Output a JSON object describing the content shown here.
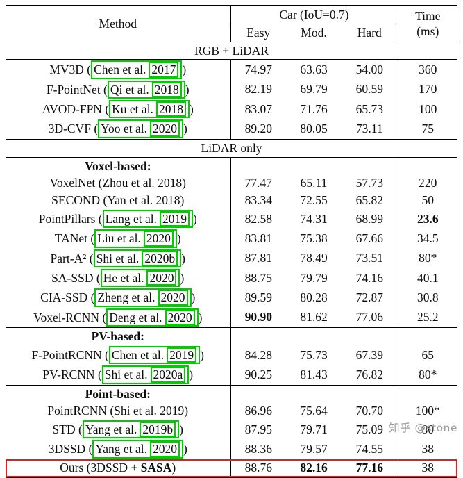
{
  "header": {
    "method": "Method",
    "car_group": "Car (IoU=0.7)",
    "sub_easy": "Easy",
    "sub_mod": "Mod.",
    "sub_hard": "Hard",
    "time_line1": "Time",
    "time_line2": "(ms)"
  },
  "rows": [
    {
      "label": "RGB + LiDAR"
    },
    {
      "pre": "MV3D (",
      "cite": "Chen et al.",
      "year": "2017",
      "post": ")",
      "easy": "74.97",
      "mod": "63.63",
      "hard": "54.00",
      "time": "360"
    },
    {
      "pre": "F-PointNet (",
      "cite": "Qi et al.",
      "year": "2018",
      "post": ")",
      "easy": "82.19",
      "mod": "69.79",
      "hard": "60.59",
      "time": "170"
    },
    {
      "pre": "AVOD-FPN (",
      "cite": "Ku et al.",
      "year": "2018",
      "post": ")",
      "easy": "83.07",
      "mod": "71.76",
      "hard": "65.73",
      "time": "100"
    },
    {
      "pre": "3D-CVF (",
      "cite": "Yoo et al.",
      "year": "2020",
      "post": ")",
      "easy": "89.20",
      "mod": "80.05",
      "hard": "73.11",
      "time": "75"
    },
    {
      "label": "LiDAR only"
    },
    {
      "label": "Voxel-based:"
    },
    {
      "pre": "VoxelNet (Zhou et al. 2018)",
      "easy": "77.47",
      "mod": "65.11",
      "hard": "57.73",
      "time": "220"
    },
    {
      "pre": "SECOND (Yan et al. 2018)",
      "easy": "83.34",
      "mod": "72.55",
      "hard": "65.82",
      "time": "50"
    },
    {
      "pre": "PointPillars (",
      "cite": "Lang et al.",
      "year": "2019",
      "post": ")",
      "easy": "82.58",
      "mod": "74.31",
      "hard": "68.99",
      "time": "23.6"
    },
    {
      "pre": "TANet (",
      "cite": "Liu et al.",
      "year": "2020",
      "post": ")",
      "easy": "83.81",
      "mod": "75.38",
      "hard": "67.66",
      "time": "34.5"
    },
    {
      "pre": "Part-A² (",
      "cite": "Shi et al.",
      "year": "2020b",
      "post": ")",
      "easy": "87.81",
      "mod": "78.49",
      "hard": "73.51",
      "time": "80*"
    },
    {
      "pre": "SA-SSD (",
      "cite": "He et al.",
      "year": "2020",
      "post": ")",
      "easy": "88.75",
      "mod": "79.79",
      "hard": "74.16",
      "time": "40.1"
    },
    {
      "pre": "CIA-SSD (",
      "cite": "Zheng et al.",
      "year": "2020",
      "post": ")",
      "easy": "89.59",
      "mod": "80.28",
      "hard": "72.87",
      "time": "30.8"
    },
    {
      "pre": "Voxel-RCNN (",
      "cite": "Deng et al.",
      "year": "2020",
      "post": ")",
      "easy": "90.90",
      "mod": "81.62",
      "hard": "77.06",
      "time": "25.2"
    },
    {
      "label": "PV-based:"
    },
    {
      "pre": "F-PointRCNN (",
      "cite": "Chen et al.",
      "year": "2019",
      "post": ")",
      "easy": "84.28",
      "mod": "75.73",
      "hard": "67.39",
      "time": "65"
    },
    {
      "pre": "PV-RCNN (",
      "cite": "Shi et al.",
      "year": "2020a",
      "post": ")",
      "easy": "90.25",
      "mod": "81.43",
      "hard": "76.82",
      "time": "80*"
    },
    {
      "label": "Point-based:"
    },
    {
      "pre": "PointRCNN (Shi et al. 2019)",
      "easy": "86.96",
      "mod": "75.64",
      "hard": "70.70",
      "time": "100*"
    },
    {
      "pre": "STD (",
      "cite": "Yang et al.",
      "year": "2019b",
      "post": ")",
      "easy": "87.95",
      "mod": "79.71",
      "hard": "75.09",
      "time": "80"
    },
    {
      "pre": "3DSSD (",
      "cite": "Yang et al.",
      "year": "2020",
      "post": ")",
      "easy": "88.36",
      "mod": "79.57",
      "hard": "74.55",
      "time": "38"
    },
    {
      "pre": "Ours (3DSSD + ",
      "mid": "SASA",
      "post": ")",
      "easy": "88.76",
      "mod": "82.16",
      "hard": "77.16",
      "time": "38"
    }
  ],
  "watermark": "知乎 @stone",
  "colors": {
    "citation_box": "#00cc00",
    "highlight_box": "#e02020",
    "watermark": "#9b9b9b"
  }
}
